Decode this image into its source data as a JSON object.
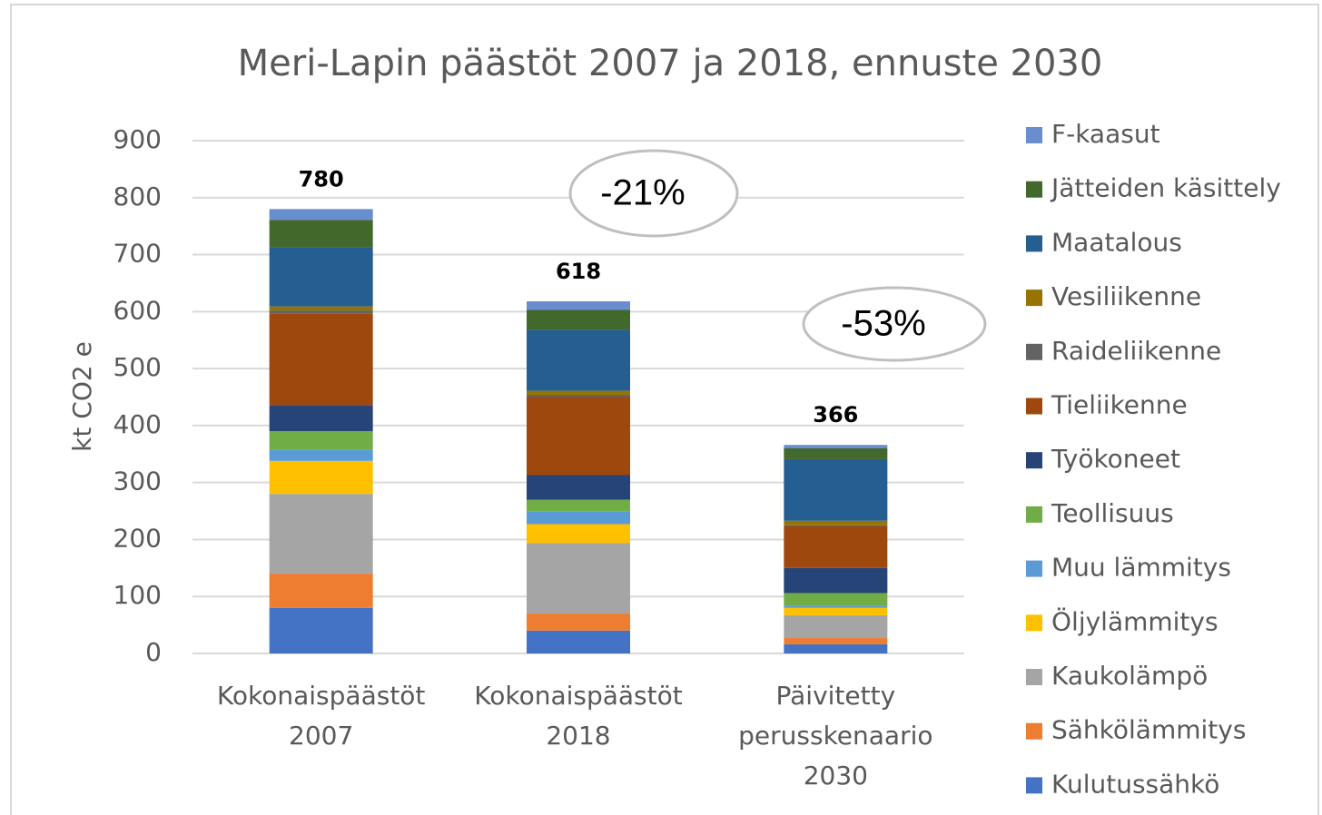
{
  "chart_data": {
    "type": "stacked_bar",
    "title": "Meri-Lapin päästöt 2007 ja 2018, ennuste 2030",
    "y_label": "kt CO2 e",
    "categories": [
      [
        "Kokonaispäästöt",
        "2007"
      ],
      [
        "Kokonaispäästöt",
        "2018"
      ],
      [
        "Päivitetty",
        "perusskenaario",
        "2030"
      ]
    ],
    "ylim": [
      0,
      900
    ],
    "yticks": [
      0,
      100,
      200,
      300,
      400,
      500,
      600,
      700,
      800,
      900
    ],
    "grid": true,
    "legend": "right",
    "totals": [
      780,
      618,
      366
    ],
    "annotations": [
      "-21%",
      "-53%"
    ],
    "series": [
      {
        "name": "Kulutussähkö",
        "color": "#4472c4",
        "values": [
          80,
          40,
          16
        ]
      },
      {
        "name": "Sähkölämmitys",
        "color": "#ed7d31",
        "values": [
          60,
          30,
          11
        ]
      },
      {
        "name": "Kaukolämpö",
        "color": "#a5a5a5",
        "values": [
          140,
          124,
          40
        ]
      },
      {
        "name": "Öljylämmitys",
        "color": "#ffc000",
        "values": [
          58,
          33,
          13
        ]
      },
      {
        "name": "Muu lämmitys",
        "color": "#5b9bd5",
        "values": [
          19,
          22,
          4
        ]
      },
      {
        "name": "Teollisuus",
        "color": "#70ad47",
        "values": [
          33,
          21,
          22
        ]
      },
      {
        "name": "Työkoneet",
        "color": "#264478",
        "values": [
          46,
          43,
          44
        ]
      },
      {
        "name": "Tieliikenne",
        "color": "#9e480e",
        "values": [
          161,
          137,
          73
        ]
      },
      {
        "name": "Raideliikenne",
        "color": "#636363",
        "values": [
          5,
          4,
          2
        ]
      },
      {
        "name": "Vesiliikenne",
        "color": "#997300",
        "values": [
          7,
          7,
          8
        ]
      },
      {
        "name": "Maatalous",
        "color": "#255e91",
        "values": [
          104,
          107,
          108
        ]
      },
      {
        "name": "Jätteiden käsittely",
        "color": "#43682b",
        "values": [
          48,
          35,
          19
        ]
      },
      {
        "name": "F-kaasut",
        "color": "#698ed0",
        "values": [
          19,
          15,
          6
        ]
      }
    ]
  }
}
